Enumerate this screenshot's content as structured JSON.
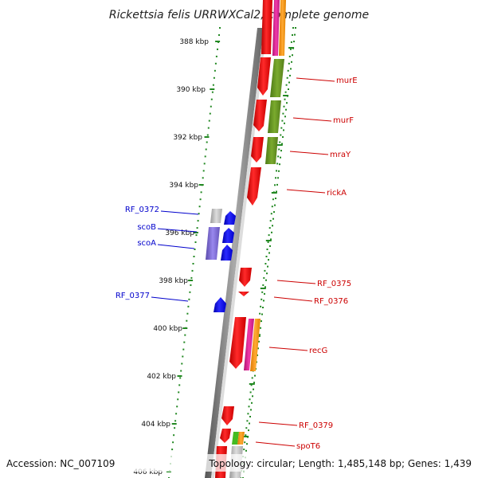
{
  "title": "Rickettsia felis URRWXCal2, complete genome",
  "footer": {
    "accession": "Accession: NC_007109",
    "stats": "Topology: circular; Length: 1,485,148 bp; Genes: 1,439"
  },
  "ticks": [
    "388 kbp",
    "390 kbp",
    "392 kbp",
    "394 kbp",
    "396 kbp",
    "398 kbp",
    "400 kbp",
    "402 kbp",
    "404 kbp",
    "406 kbp"
  ],
  "forward_genes": [
    {
      "name": "murE"
    },
    {
      "name": "murF"
    },
    {
      "name": "mraY"
    },
    {
      "name": "rickA"
    },
    {
      "name": "RF_0375"
    },
    {
      "name": "RF_0376"
    },
    {
      "name": "recG"
    },
    {
      "name": "RF_0379"
    },
    {
      "name": "spoT6"
    }
  ],
  "reverse_genes": [
    {
      "name": "RF_0372"
    },
    {
      "name": "scoB"
    },
    {
      "name": "scoA"
    },
    {
      "name": "RF_0377"
    }
  ],
  "colors": {
    "forward_gene": "#ee0000",
    "reverse_gene": "#0000ee",
    "forward_label": "#cc0000",
    "reverse_label": "#0000cc",
    "cog_green": "#669922",
    "cog_magenta": "#dd2299",
    "cog_orange": "#ff9900",
    "cog_purple": "#7766cc",
    "cog_gray": "#bbbbbb",
    "dotted_track": "#228822",
    "backbone": "#777777"
  }
}
